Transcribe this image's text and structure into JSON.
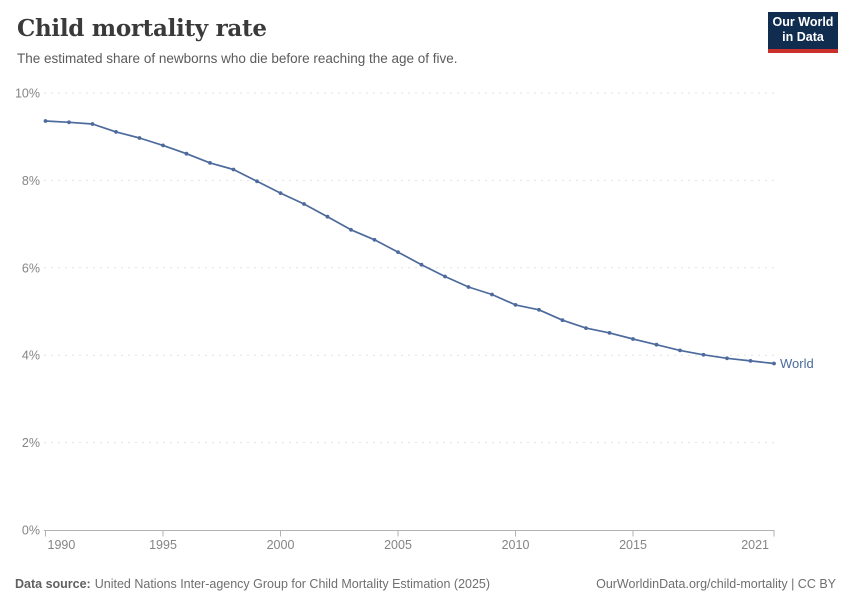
{
  "header": {
    "title": "Child mortality rate",
    "subtitle": "The estimated share of newborns who die before reaching the age of five."
  },
  "logo": {
    "line1": "Our World",
    "line2": "in Data",
    "bg_color": "#102D50",
    "accent_color": "#C9302C",
    "text_color": "#FFFFFF"
  },
  "chart_data": {
    "type": "line",
    "title": "Child mortality rate",
    "xlabel": "",
    "ylabel": "",
    "ylim": [
      0,
      10
    ],
    "yticks": [
      0,
      2,
      4,
      6,
      8,
      10
    ],
    "ytick_suffix": "%",
    "xticks": [
      1990,
      1995,
      2000,
      2005,
      2010,
      2015,
      2021
    ],
    "grid": true,
    "legend": "end-of-line-label",
    "gridline_color": "#e2e2e2",
    "axis_color": "#b3b3b3",
    "tick_label_color": "#858585",
    "x": [
      1990,
      1991,
      1992,
      1993,
      1994,
      1995,
      1996,
      1997,
      1998,
      1999,
      2000,
      2001,
      2002,
      2003,
      2004,
      2005,
      2006,
      2007,
      2008,
      2009,
      2010,
      2011,
      2012,
      2013,
      2014,
      2015,
      2016,
      2017,
      2018,
      2019,
      2020,
      2021
    ],
    "series": [
      {
        "name": "World",
        "color": "#4C6A9C",
        "values": [
          9.36,
          9.33,
          9.29,
          9.11,
          8.97,
          8.8,
          8.61,
          8.4,
          8.25,
          7.98,
          7.71,
          7.46,
          7.17,
          6.87,
          6.64,
          6.36,
          6.07,
          5.8,
          5.56,
          5.39,
          5.15,
          5.04,
          4.8,
          4.62,
          4.51,
          4.37,
          4.24,
          4.11,
          4.01,
          3.93,
          3.87,
          3.81
        ]
      }
    ]
  },
  "footer": {
    "source_label": "Data source:",
    "source_text": "United Nations Inter-agency Group for Child Mortality Estimation (2025)",
    "url": "OurWorldinData.org/child-mortality",
    "divider": " | ",
    "license": "CC BY"
  }
}
